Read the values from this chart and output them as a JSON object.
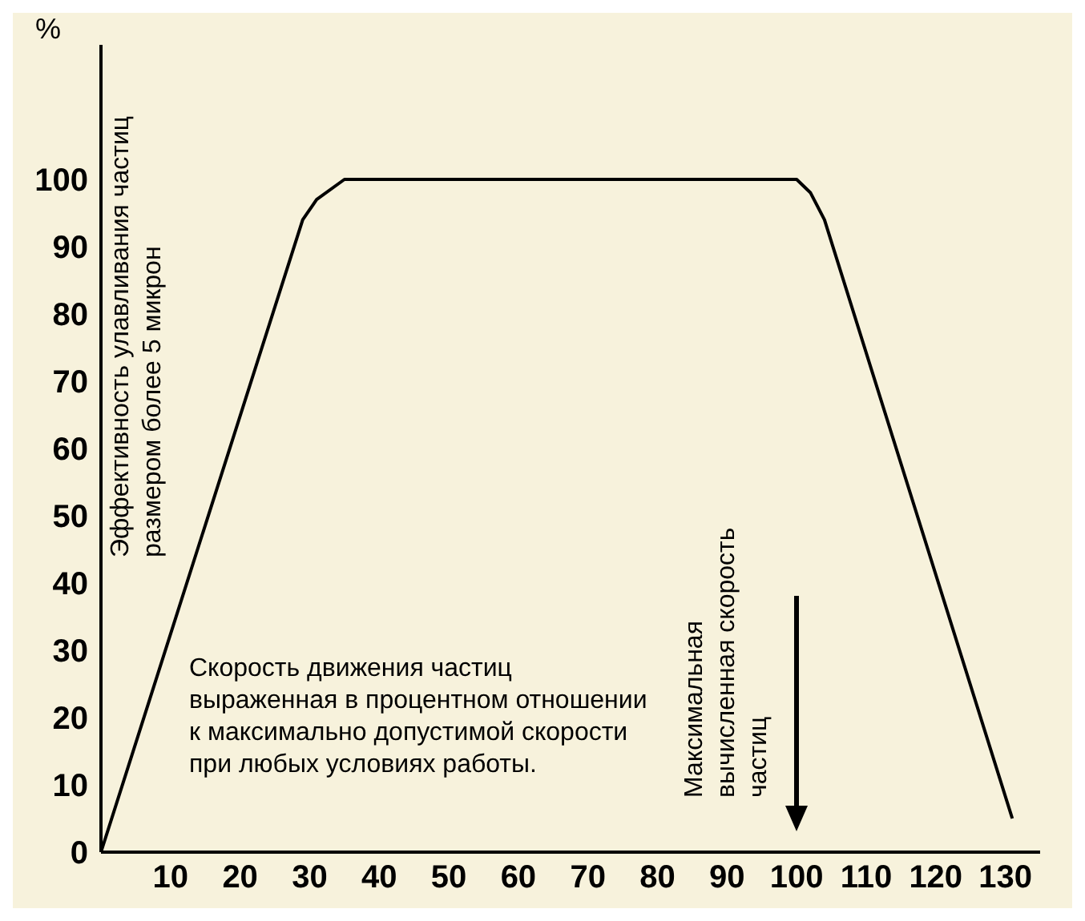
{
  "chart_data": {
    "type": "line",
    "ylabel": "%",
    "x": [
      0,
      29,
      31,
      35,
      100,
      102,
      104,
      131
    ],
    "series": [
      {
        "color": "#000000",
        "values": [
          0,
          94,
          97,
          100,
          100,
          98,
          94,
          5
        ]
      }
    ],
    "xlim": [
      0,
      135
    ],
    "xticks": [
      10,
      20,
      30,
      40,
      50,
      60,
      70,
      80,
      90,
      100,
      110,
      120,
      130
    ],
    "ylim": [
      0,
      120
    ],
    "yticks": [
      0,
      10,
      20,
      30,
      40,
      50,
      60,
      70,
      80,
      90,
      100
    ],
    "grid": false,
    "legend": false,
    "marker": "none",
    "line_style": "solid",
    "annotations": [
      "Эффективность улавливания частиц размером более 5 микрон",
      "Скорость движения частиц выраженная в процентном отношении к максимально допустимой скорости при любых условиях работы.",
      "Максимальная вычисленная скорость частиц"
    ]
  }
}
